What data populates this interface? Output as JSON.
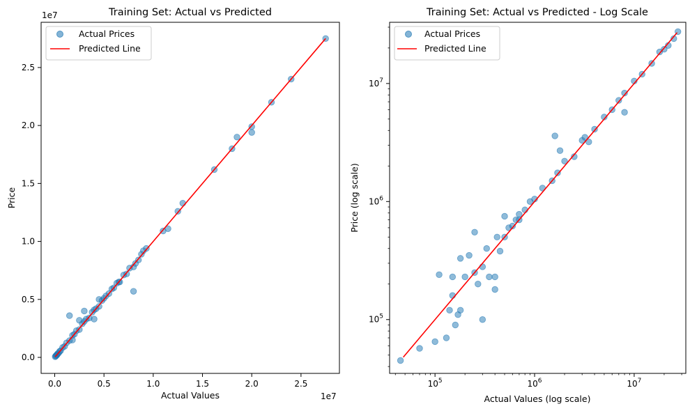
{
  "chart_data": [
    {
      "type": "scatter",
      "title": "Training Set: Actual vs Predicted",
      "xlabel": "Actual Values",
      "ylabel": "Price",
      "x_offset_label": "1e7",
      "y_offset_label": "1e7",
      "xlim": [
        -1380000,
        28900000
      ],
      "ylim": [
        -1380000,
        28900000
      ],
      "x_scale": "linear",
      "y_scale": "linear",
      "x_ticks": [
        0,
        5000000,
        10000000,
        15000000,
        20000000,
        25000000
      ],
      "x_tick_labels": [
        "0.0",
        "0.5",
        "1.0",
        "1.5",
        "2.0",
        "2.5"
      ],
      "y_ticks": [
        0,
        5000000,
        10000000,
        15000000,
        20000000,
        25000000
      ],
      "y_tick_labels": [
        "0.0",
        "0.5",
        "1.0",
        "1.5",
        "2.0",
        "2.5"
      ],
      "grid": false,
      "legend_position": "top-left",
      "series": [
        {
          "name": "Actual Prices",
          "kind": "scatter",
          "color": "#1f77b4",
          "x": [
            50000,
            100000,
            150000,
            200000,
            250000,
            300000,
            400000,
            500000,
            600000,
            800000,
            1000000,
            1200000,
            1500000,
            1800000,
            2000000,
            2200000,
            2500000,
            2800000,
            3000000,
            3200000,
            3500000,
            3800000,
            4000000,
            4200000,
            4500000,
            4800000,
            5000000,
            5200000,
            5500000,
            5800000,
            6000000,
            6300000,
            6600000,
            7000000,
            7300000,
            7600000,
            8000000,
            8200000,
            8500000,
            8800000,
            9000000,
            9300000,
            11000000,
            11500000,
            12500000,
            13000000,
            16200000,
            18000000,
            18500000,
            20000000,
            20000000,
            22000000,
            24000000,
            27500000,
            1500000,
            1800000,
            2500000,
            3000000,
            4000000,
            4500000,
            6500000,
            8000000
          ],
          "y": [
            60000,
            120000,
            140000,
            220000,
            230000,
            320000,
            380000,
            520000,
            580000,
            850000,
            950000,
            1250000,
            1450000,
            1900000,
            2000000,
            2300000,
            2400000,
            2900000,
            3100000,
            3300000,
            3400000,
            3900000,
            4100000,
            4200000,
            4400000,
            4900000,
            5100000,
            5300000,
            5500000,
            5900000,
            6000000,
            6400000,
            6500000,
            7100000,
            7200000,
            7700000,
            7800000,
            8100000,
            8400000,
            8900000,
            9200000,
            9400000,
            10900000,
            11100000,
            12600000,
            13300000,
            16200000,
            18000000,
            19000000,
            19900000,
            19400000,
            22000000,
            24000000,
            27500000,
            3600000,
            1500000,
            3200000,
            4000000,
            3300000,
            5000000,
            6500000,
            5700000
          ]
        },
        {
          "name": "Predicted Line",
          "kind": "line",
          "color": "#ff0000",
          "x": [
            45000,
            27500000
          ],
          "y": [
            45000,
            27500000
          ]
        }
      ]
    },
    {
      "type": "scatter",
      "title": "Training Set: Actual vs Predicted - Log Scale",
      "xlabel": "Actual Values (log scale)",
      "ylabel": "Price (log scale)",
      "x_scale": "log",
      "y_scale": "log",
      "xlim": [
        35000,
        33000000
      ],
      "ylim": [
        35000,
        33000000
      ],
      "x_ticks": [
        100000,
        1000000,
        10000000
      ],
      "x_tick_labels": [
        [
          "10",
          "5"
        ],
        [
          "10",
          "6"
        ],
        [
          "10",
          "7"
        ]
      ],
      "y_ticks": [
        100000,
        1000000,
        10000000
      ],
      "y_tick_labels": [
        [
          "10",
          "5"
        ],
        [
          "10",
          "6"
        ],
        [
          "10",
          "7"
        ]
      ],
      "grid": false,
      "legend_position": "top-left",
      "series": [
        {
          "name": "Actual Prices",
          "kind": "scatter",
          "color": "#1f77b4",
          "x": [
            45000,
            70000,
            100000,
            110000,
            130000,
            140000,
            150000,
            160000,
            170000,
            180000,
            200000,
            220000,
            250000,
            270000,
            300000,
            330000,
            350000,
            400000,
            420000,
            450000,
            500000,
            550000,
            600000,
            650000,
            700000,
            800000,
            900000,
            1000000,
            1200000,
            1500000,
            1700000,
            2000000,
            2500000,
            3000000,
            3500000,
            4000000,
            5000000,
            6000000,
            7000000,
            8000000,
            10000000,
            12000000,
            15000000,
            18000000,
            20000000,
            22000000,
            25000000,
            27500000,
            300000,
            250000,
            400000,
            500000,
            700000,
            1600000,
            1800000,
            3200000,
            8000000,
            150000,
            180000
          ],
          "y": [
            45000,
            57000,
            65000,
            240000,
            70000,
            120000,
            160000,
            90000,
            110000,
            330000,
            230000,
            350000,
            550000,
            200000,
            280000,
            400000,
            230000,
            180000,
            500000,
            380000,
            750000,
            600000,
            620000,
            700000,
            780000,
            850000,
            1000000,
            1050000,
            1300000,
            1500000,
            1750000,
            2200000,
            2400000,
            3300000,
            3200000,
            4100000,
            5200000,
            6000000,
            7200000,
            8300000,
            10500000,
            12000000,
            14800000,
            18500000,
            19500000,
            21000000,
            24000000,
            27500000,
            100000,
            250000,
            230000,
            500000,
            700000,
            3600000,
            2700000,
            3500000,
            5700000,
            230000,
            120000
          ]
        },
        {
          "name": "Predicted Line",
          "kind": "line",
          "color": "#ff0000",
          "x": [
            48000,
            27000000
          ],
          "y": [
            48000,
            27000000
          ]
        }
      ]
    }
  ]
}
